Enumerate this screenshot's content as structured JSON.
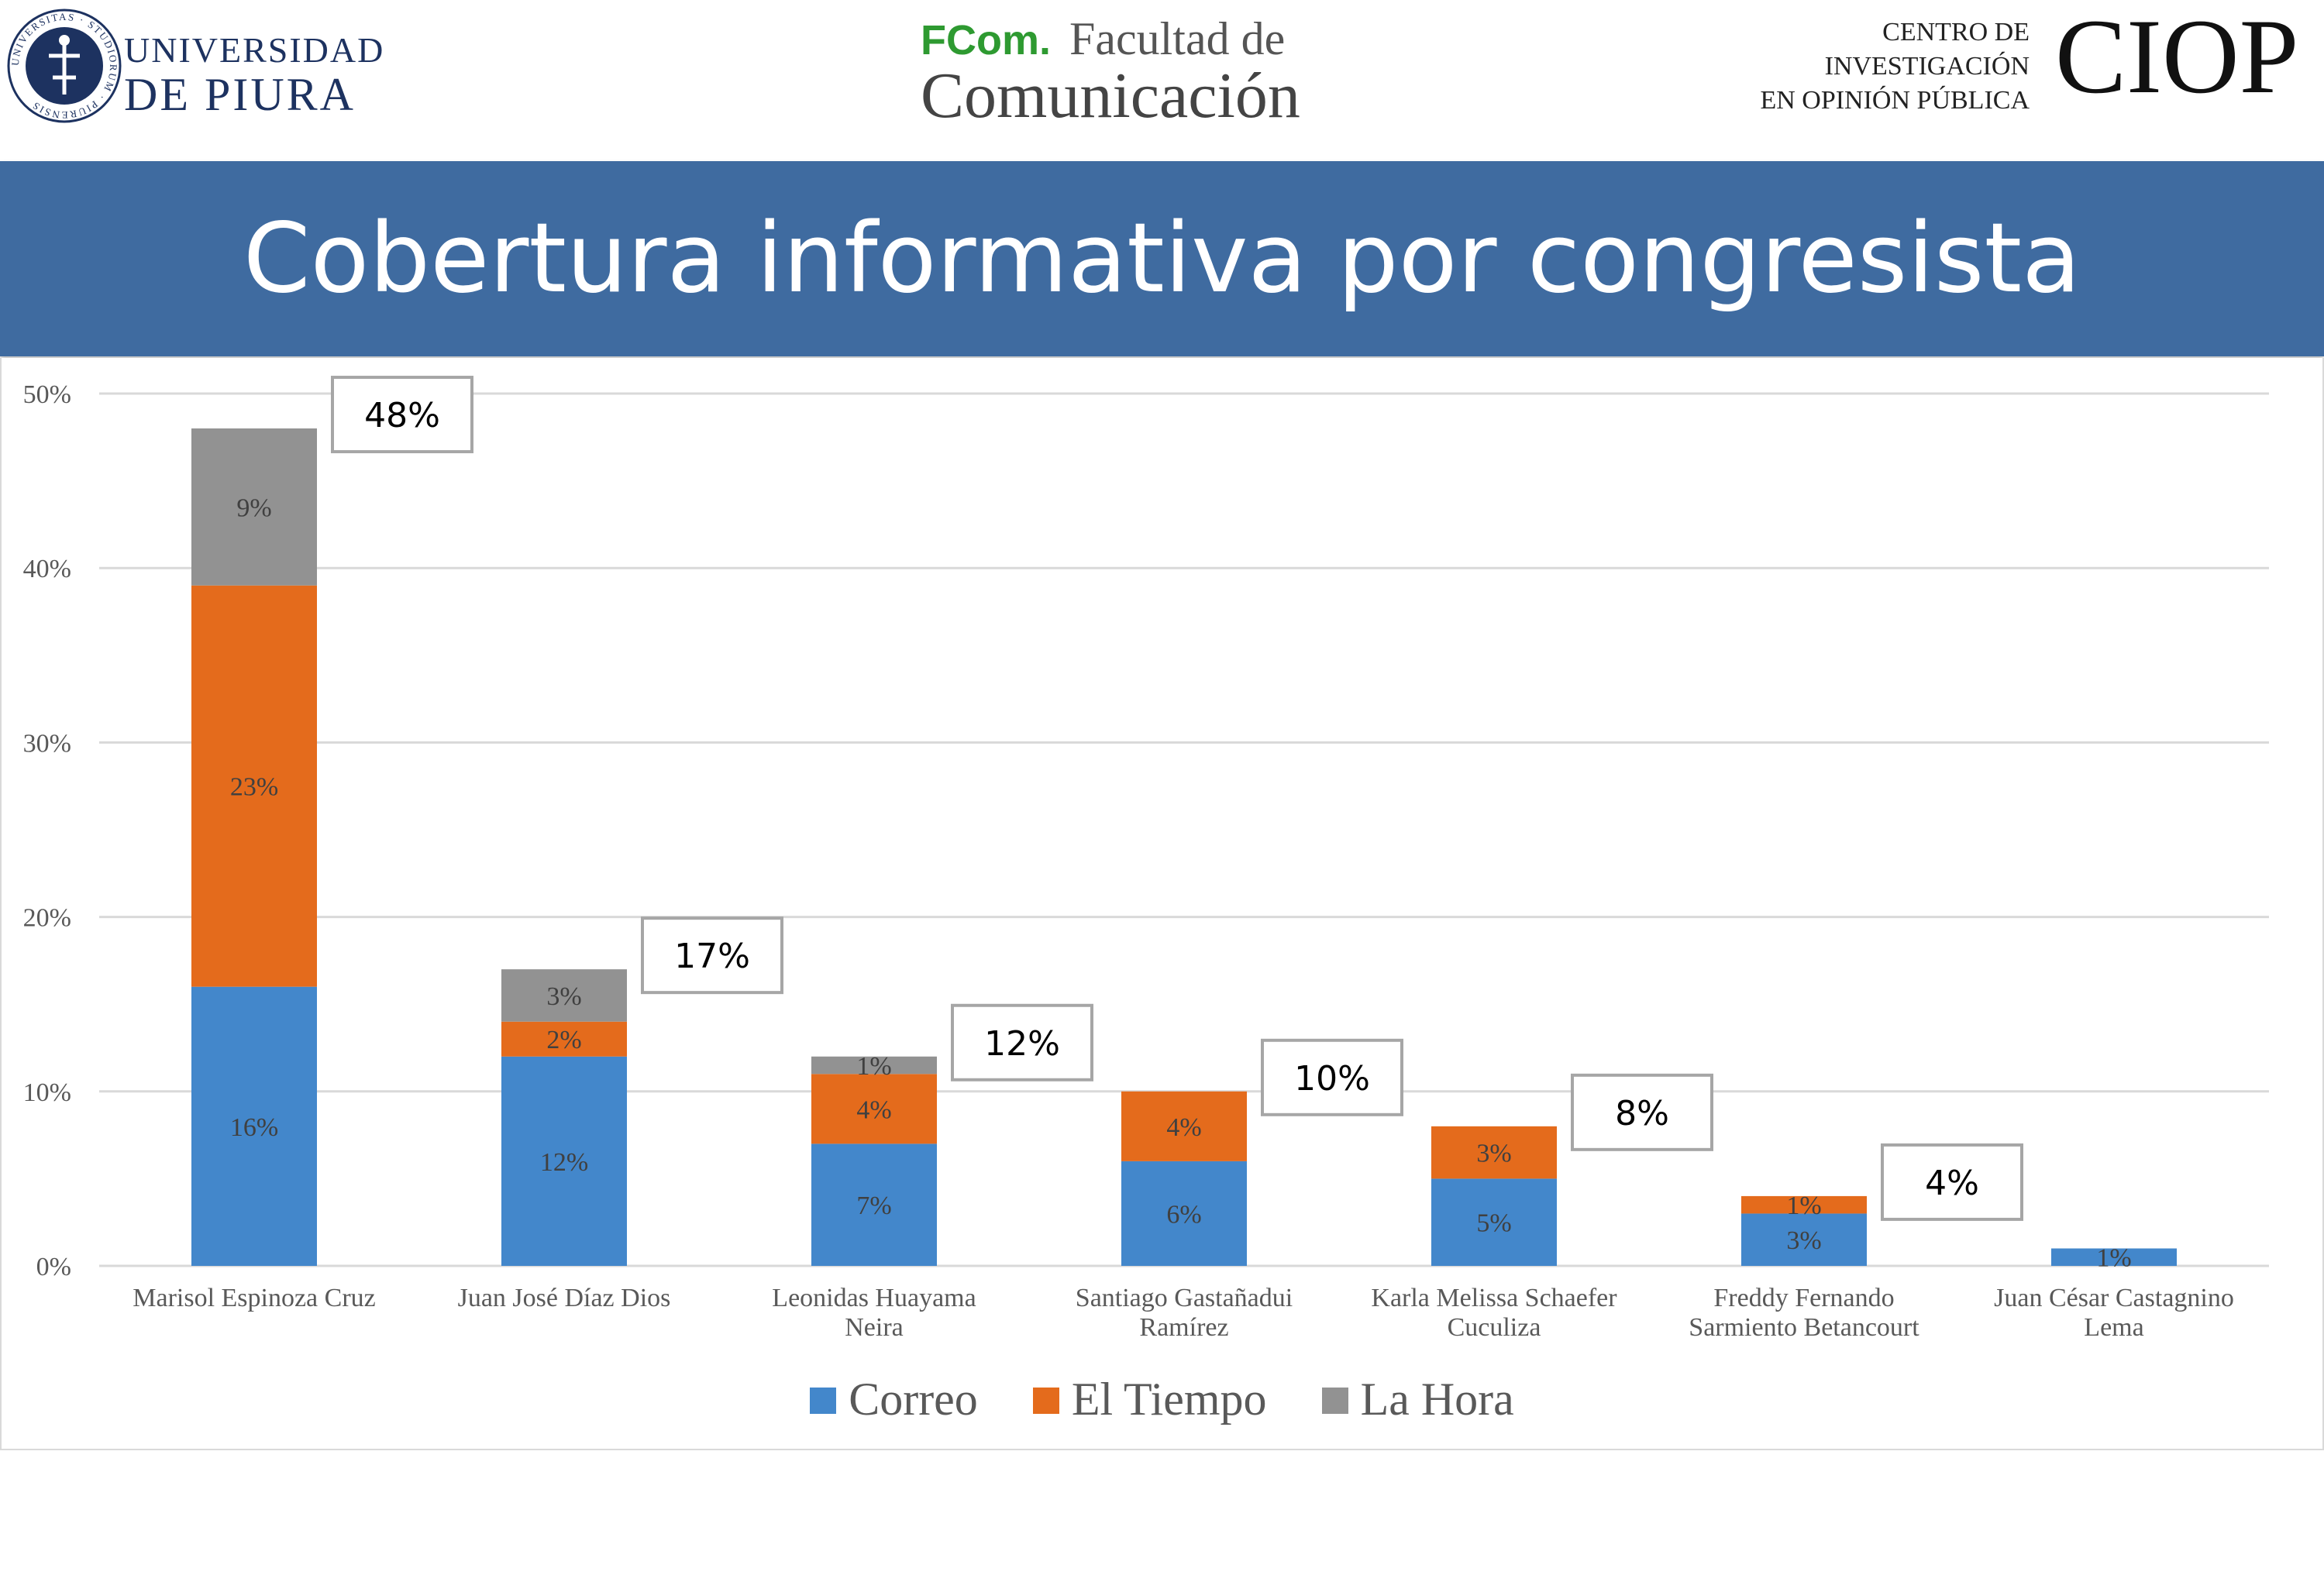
{
  "header": {
    "udep_line1": "UNIVERSIDAD",
    "udep_line2": "DE PIURA",
    "seal_ring_text": "UNIVERSITAS · STUDIORUM · PIURENSIS",
    "fcom_brand": "FCom.",
    "fcom_faculty": "Facultad de",
    "fcom_name": "Comunicación",
    "ciop_line1": "CENTRO DE",
    "ciop_line2": "INVESTIGACIÓN",
    "ciop_line3": "EN OPINIÓN PÚBLICA",
    "ciop_acronym": "CIOP"
  },
  "title": "Cobertura informativa por congresista",
  "colors": {
    "correo": "#4387cb",
    "el_tiempo": "#e46b1c",
    "la_hora": "#929292",
    "band": "#3f6ba0"
  },
  "chart_data": {
    "type": "bar",
    "stacked": true,
    "title": "Cobertura informativa por congresista",
    "categories": [
      [
        "Marisol Espinoza Cruz"
      ],
      [
        "Juan José Díaz Dios"
      ],
      [
        "Leonidas Huayama",
        "Neira"
      ],
      [
        "Santiago Gastañadui",
        "Ramírez"
      ],
      [
        "Karla Melissa Schaefer",
        "Cuculiza"
      ],
      [
        "Freddy Fernando",
        "Sarmiento Betancourt"
      ],
      [
        "Juan César Castagnino",
        "Lema"
      ]
    ],
    "series": [
      {
        "name": "Correo",
        "values": [
          16,
          12,
          7,
          6,
          5,
          3,
          1
        ]
      },
      {
        "name": "El Tiempo",
        "values": [
          23,
          2,
          4,
          4,
          3,
          1,
          null
        ]
      },
      {
        "name": "La Hora",
        "values": [
          9,
          3,
          1,
          null,
          null,
          null,
          null
        ]
      }
    ],
    "totals": [
      48,
      17,
      12,
      10,
      8,
      4,
      null
    ],
    "ylim": [
      0,
      50
    ],
    "yticks": [
      0,
      10,
      20,
      30,
      40,
      50
    ],
    "ytick_labels": [
      "0%",
      "10%",
      "20%",
      "30%",
      "40%",
      "50%"
    ],
    "xlabel": "",
    "ylabel": "",
    "grid": true,
    "legend": [
      "Correo",
      "El Tiempo",
      "La Hora"
    ],
    "legend_position": "bottom"
  }
}
